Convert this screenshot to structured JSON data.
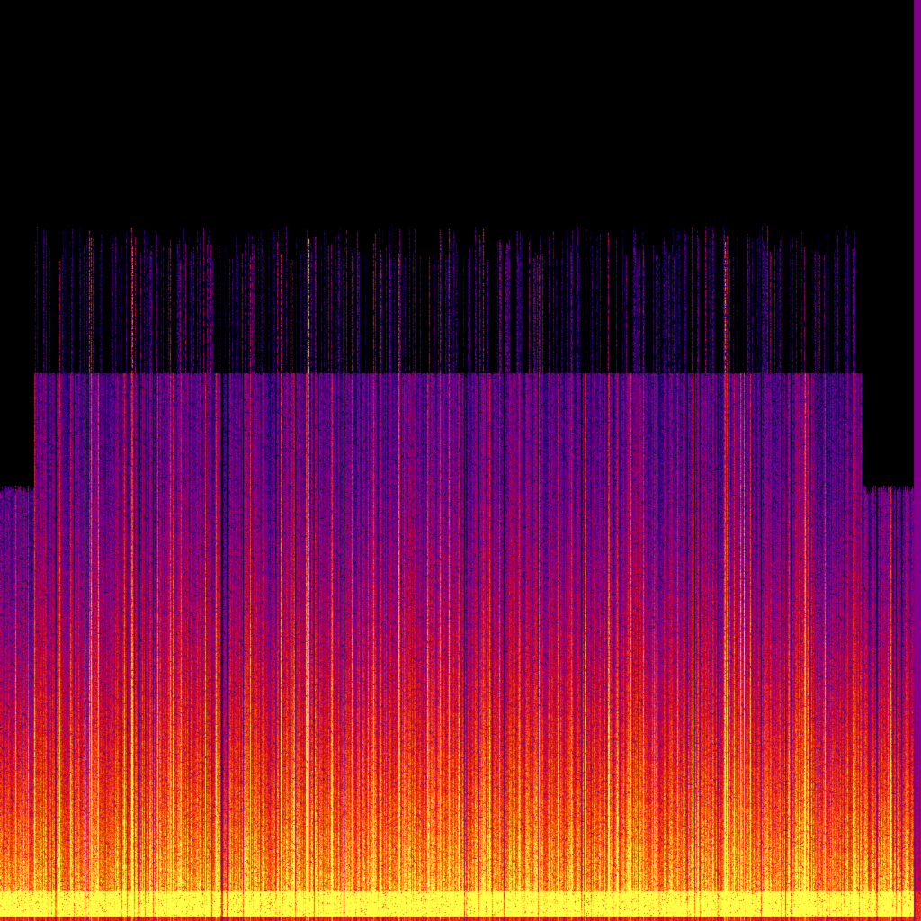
{
  "image": {
    "kind": "spectrogram",
    "colormap": [
      "#000000",
      "#14006e",
      "#7a0094",
      "#d2002c",
      "#ff5a00",
      "#ffff48"
    ],
    "background": "#000000",
    "axes_visible": false
  }
}
